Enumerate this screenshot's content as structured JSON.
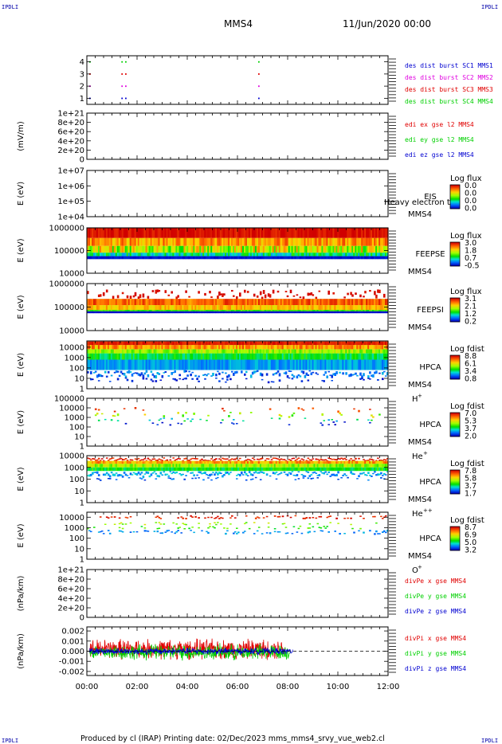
{
  "header": {
    "corner_left": "IPDLI",
    "corner_right": "IPDLI",
    "spacecraft": "MMS4",
    "date": "11/Jun/2020 00:00"
  },
  "footer": {
    "corner_left": "IPDLI",
    "corner_right": "IPDLI",
    "text": "Produced by cl (IRAP)   Printing date: 02/Dec/2023   mms_mms4_srvy_vue_web2.cl"
  },
  "colors": {
    "red": "#e00000",
    "green": "#00d000",
    "blue": "#0000d0",
    "magenta": "#e000e0",
    "corner": "#0000aa"
  },
  "chart_data": [
    {
      "type": "scatter",
      "name": "burst",
      "yticks": [
        "1",
        "2",
        "3",
        "4"
      ],
      "ylim": [
        0.5,
        4.5
      ],
      "legend": [
        {
          "label": "des dist burst SC1 MMS1",
          "color": "#0000d0"
        },
        {
          "label": "des dist burst SC2 MMS2",
          "color": "#e000e0"
        },
        {
          "label": "des dist burst SC3 MMS3",
          "color": "#e00000"
        },
        {
          "label": "des dist burst SC4 MMS4",
          "color": "#00d000"
        }
      ],
      "points": [
        {
          "t": 0.12,
          "y": 1,
          "c": "#0000d0"
        },
        {
          "t": 1.4,
          "y": 1,
          "c": "#0000d0"
        },
        {
          "t": 1.55,
          "y": 1,
          "c": "#0000d0"
        },
        {
          "t": 6.85,
          "y": 1,
          "c": "#0000d0"
        },
        {
          "t": 0.12,
          "y": 2,
          "c": "#e000e0"
        },
        {
          "t": 1.4,
          "y": 2,
          "c": "#e000e0"
        },
        {
          "t": 1.55,
          "y": 2,
          "c": "#e000e0"
        },
        {
          "t": 6.85,
          "y": 2,
          "c": "#e000e0"
        },
        {
          "t": 0.12,
          "y": 3,
          "c": "#e00000"
        },
        {
          "t": 1.4,
          "y": 3,
          "c": "#e00000"
        },
        {
          "t": 1.55,
          "y": 3,
          "c": "#e00000"
        },
        {
          "t": 6.85,
          "y": 3,
          "c": "#e00000"
        },
        {
          "t": 0.12,
          "y": 4,
          "c": "#00d000"
        },
        {
          "t": 1.4,
          "y": 4,
          "c": "#00d000"
        },
        {
          "t": 1.55,
          "y": 4,
          "c": "#00d000"
        },
        {
          "t": 6.85,
          "y": 4,
          "c": "#00d000"
        }
      ]
    },
    {
      "type": "line",
      "name": "edi",
      "ylabel": "(mV/m)",
      "yticks": [
        "0",
        "2e+20",
        "4e+20",
        "6e+20",
        "8e+20",
        "1e+21"
      ],
      "ylim": [
        0,
        1e+21
      ],
      "zero_line": true,
      "legend": [
        {
          "label": "edi ex gse l2 MMS4",
          "color": "#e00000"
        },
        {
          "label": "edi ey gse l2 MMS4",
          "color": "#00d000"
        },
        {
          "label": "edi ez gse l2 MMS4",
          "color": "#0000d0"
        }
      ],
      "series": []
    },
    {
      "type": "heatmap",
      "name": "eis",
      "ylabel": "E (eV)",
      "yticks": [
        "1e+04",
        "1e+05",
        "1e+06",
        "1e+07"
      ],
      "ylim": [
        10000.0,
        10000000.0
      ],
      "log_y": true,
      "instrument": "EIS",
      "spacecraft": "MMS4",
      "overlay_text": "Heavy electron to",
      "colorbar": {
        "title": "Log flux",
        "ticks": [
          "0.0",
          "0.0",
          "0.0",
          "0.0"
        ]
      },
      "bands": []
    },
    {
      "type": "heatmap",
      "name": "feepse",
      "ylabel": "E (eV)",
      "yticks": [
        "10000",
        "100000",
        "1000000"
      ],
      "ylim": [
        10000.0,
        1000000.0
      ],
      "log_y": true,
      "instrument": "FEEPSE",
      "spacecraft": "MMS4",
      "colorbar": {
        "title": "Log flux",
        "ticks": [
          "3.0",
          "1.8",
          "0.7",
          "-0.5"
        ]
      },
      "bands": [
        {
          "elog": [
            5.55,
            6.0
          ],
          "level": 0.02,
          "noise": 0.06
        },
        {
          "elog": [
            5.2,
            5.55
          ],
          "level": 0.22,
          "noise": 0.12
        },
        {
          "elog": [
            4.9,
            5.2
          ],
          "level": 0.4,
          "noise": 0.22
        },
        {
          "elog": [
            4.75,
            4.9
          ],
          "level": 0.68,
          "noise": 0.12
        },
        {
          "elog": [
            4.62,
            4.75
          ],
          "level": 0.97,
          "noise": 0.02
        }
      ],
      "extent_t": [
        0,
        12
      ]
    },
    {
      "type": "heatmap",
      "name": "feepsi",
      "ylabel": "E (eV)",
      "yticks": [
        "10000",
        "100000",
        "1000000"
      ],
      "ylim": [
        10000.0,
        1000000.0
      ],
      "log_y": true,
      "instrument": "FEEPSI",
      "spacecraft": "MMS4",
      "colorbar": {
        "title": "Log flux",
        "ticks": [
          "3.1",
          "2.1",
          "1.2",
          "0.2"
        ]
      },
      "bands": [
        {
          "elog": [
            5.35,
            5.75
          ],
          "level": 0.02,
          "noise": 0.02,
          "sparse": 0.45
        },
        {
          "elog": [
            5.08,
            5.35
          ],
          "level": 0.15,
          "noise": 0.1
        },
        {
          "elog": [
            4.88,
            5.08
          ],
          "level": 0.28,
          "noise": 0.08
        },
        {
          "elog": [
            4.82,
            4.88
          ],
          "level": 0.55,
          "noise": 0.05
        },
        {
          "elog": [
            4.74,
            4.82
          ],
          "level": 0.98,
          "noise": 0.01
        }
      ],
      "extent_t": [
        0,
        12
      ]
    },
    {
      "type": "heatmap",
      "name": "hpca_h",
      "ylabel": "E (eV)",
      "yticks": [
        "1",
        "10",
        "100",
        "1000",
        "10000"
      ],
      "ylim": [
        1,
        40000
      ],
      "log_y": true,
      "instrument": "HPCA",
      "spacecraft": "MMS4",
      "species": "H",
      "species_sup": "+",
      "colorbar": {
        "title": "Log fdist",
        "ticks": [
          "8.8",
          "6.1",
          "3.4",
          "0.8"
        ]
      },
      "bands": [
        {
          "elog": [
            4.2,
            4.55
          ],
          "level": 0.05,
          "noise": 0.04
        },
        {
          "elog": [
            3.8,
            4.2
          ],
          "level": 0.22,
          "noise": 0.12
        },
        {
          "elog": [
            3.4,
            3.8
          ],
          "level": 0.45,
          "noise": 0.1
        },
        {
          "elog": [
            2.8,
            3.4
          ],
          "level": 0.62,
          "noise": 0.08
        },
        {
          "elog": [
            1.8,
            2.8
          ],
          "level": 0.8,
          "noise": 0.06
        },
        {
          "elog": [
            1.1,
            1.8
          ],
          "level": 0.85,
          "noise": 0.1,
          "sparse": 0.75
        },
        {
          "elog": [
            0.6,
            1.1
          ],
          "level": 0.95,
          "noise": 0.05,
          "sparse": 0.25
        }
      ],
      "extent_t": [
        0,
        12
      ]
    },
    {
      "type": "heatmap",
      "name": "hpca_he",
      "ylabel": "E (eV)",
      "yticks": [
        "1",
        "10",
        "100",
        "1000",
        "10000",
        "100000"
      ],
      "ylim": [
        1,
        100000
      ],
      "log_y": true,
      "instrument": "HPCA",
      "spacecraft": "MMS4",
      "species": "He",
      "species_sup": "+",
      "colorbar": {
        "title": "Log fdist",
        "ticks": [
          "7.0",
          "5.3",
          "3.7",
          "2.0"
        ]
      },
      "bands": [
        {
          "elog": [
            3.6,
            4.1
          ],
          "level": 0.1,
          "noise": 0.05,
          "sparse": 0.07
        },
        {
          "elog": [
            3.0,
            3.6
          ],
          "level": 0.45,
          "noise": 0.15,
          "sparse": 0.12
        },
        {
          "elog": [
            2.6,
            3.0
          ],
          "level": 0.7,
          "noise": 0.1,
          "sparse": 0.1
        },
        {
          "elog": [
            2.2,
            2.6
          ],
          "level": 0.95,
          "noise": 0.04,
          "sparse": 0.06
        }
      ],
      "extent_t": [
        0,
        12
      ]
    },
    {
      "type": "heatmap",
      "name": "hpca_hepp",
      "ylabel": "E (eV)",
      "yticks": [
        "1",
        "10",
        "100",
        "1000",
        "10000"
      ],
      "ylim": [
        1,
        10000
      ],
      "log_y": true,
      "instrument": "HPCA",
      "spacecraft": "MMS4",
      "species": "He",
      "species_sup": "++",
      "colorbar": {
        "title": "Log fdist",
        "ticks": [
          "7.8",
          "5.8",
          "3.7",
          "1.7"
        ]
      },
      "bands": [
        {
          "elog": [
            3.55,
            3.85
          ],
          "level": 0.05,
          "noise": 0.05,
          "sparse": 0.9
        },
        {
          "elog": [
            3.3,
            3.55
          ],
          "level": 0.25,
          "noise": 0.12
        },
        {
          "elog": [
            3.0,
            3.3
          ],
          "level": 0.45,
          "noise": 0.1
        },
        {
          "elog": [
            2.7,
            3.0
          ],
          "level": 0.6,
          "noise": 0.08
        },
        {
          "elog": [
            2.2,
            2.7
          ],
          "level": 0.8,
          "noise": 0.08,
          "sparse": 0.9
        },
        {
          "elog": [
            1.9,
            2.2
          ],
          "level": 0.88,
          "noise": 0.06,
          "sparse": 0.25
        }
      ],
      "extent_t": [
        0,
        12
      ]
    },
    {
      "type": "heatmap",
      "name": "hpca_o",
      "ylabel": "E (eV)",
      "yticks": [
        "1",
        "10",
        "100",
        "1000",
        "10000"
      ],
      "ylim": [
        1,
        30000
      ],
      "log_y": true,
      "instrument": "HPCA",
      "spacecraft": "MMS4",
      "species": "O",
      "species_sup": "+",
      "colorbar": {
        "title": "Log fdist",
        "ticks": [
          "8.7",
          "6.9",
          "5.0",
          "3.2"
        ]
      },
      "bands": [
        {
          "elog": [
            3.85,
            4.2
          ],
          "level": 0.05,
          "noise": 0.05,
          "sparse": 0.35
        },
        {
          "elog": [
            3.3,
            3.55
          ],
          "level": 0.45,
          "noise": 0.1,
          "sparse": 0.18
        },
        {
          "elog": [
            2.9,
            3.2
          ],
          "level": 0.55,
          "noise": 0.08,
          "sparse": 0.2
        },
        {
          "elog": [
            2.4,
            2.8
          ],
          "level": 0.82,
          "noise": 0.06,
          "sparse": 0.35
        }
      ],
      "extent_t": [
        0,
        12
      ]
    },
    {
      "type": "line",
      "name": "divpe",
      "ylabel": "(nPa/km)",
      "yticks": [
        "0",
        "2e+20",
        "4e+20",
        "6e+20",
        "8e+20",
        "1e+21"
      ],
      "ylim": [
        0,
        1e+21
      ],
      "zero_line": true,
      "legend": [
        {
          "label": "divPe x gse MMS4",
          "color": "#e00000"
        },
        {
          "label": "divPe y gse MMS4",
          "color": "#00d000"
        },
        {
          "label": "divPe z gse MMS4",
          "color": "#0000d0"
        }
      ],
      "series": []
    },
    {
      "type": "line",
      "name": "divpi",
      "ylabel": "(nPa/km)",
      "yticks": [
        "-0.002",
        "-0.001",
        "0.000",
        "0.001",
        "0.002"
      ],
      "ylim": [
        -0.0024,
        0.0024
      ],
      "zero_line": true,
      "legend": [
        {
          "label": "divPi x gse MMS4",
          "color": "#e00000"
        },
        {
          "label": "divPi y gse MMS4",
          "color": "#00d000"
        },
        {
          "label": "divPi z gse MMS4",
          "color": "#0000d0"
        }
      ],
      "series": [
        {
          "color": "#e00000",
          "t_range": [
            0.1,
            7.9
          ],
          "center": 0.0002,
          "amp": 0.0009
        },
        {
          "color": "#00d000",
          "t_range": [
            0.1,
            8.1
          ],
          "center": -0.0001,
          "amp": 0.0007
        },
        {
          "color": "#0000d0",
          "t_range": [
            0.1,
            8.2
          ],
          "center": 0.0,
          "amp": 0.0003
        }
      ]
    }
  ],
  "time_axis": {
    "ticks": [
      "00:00",
      "02:00",
      "04:00",
      "06:00",
      "08:00",
      "10:00",
      "12:00"
    ],
    "range_hours": [
      0,
      12
    ]
  }
}
